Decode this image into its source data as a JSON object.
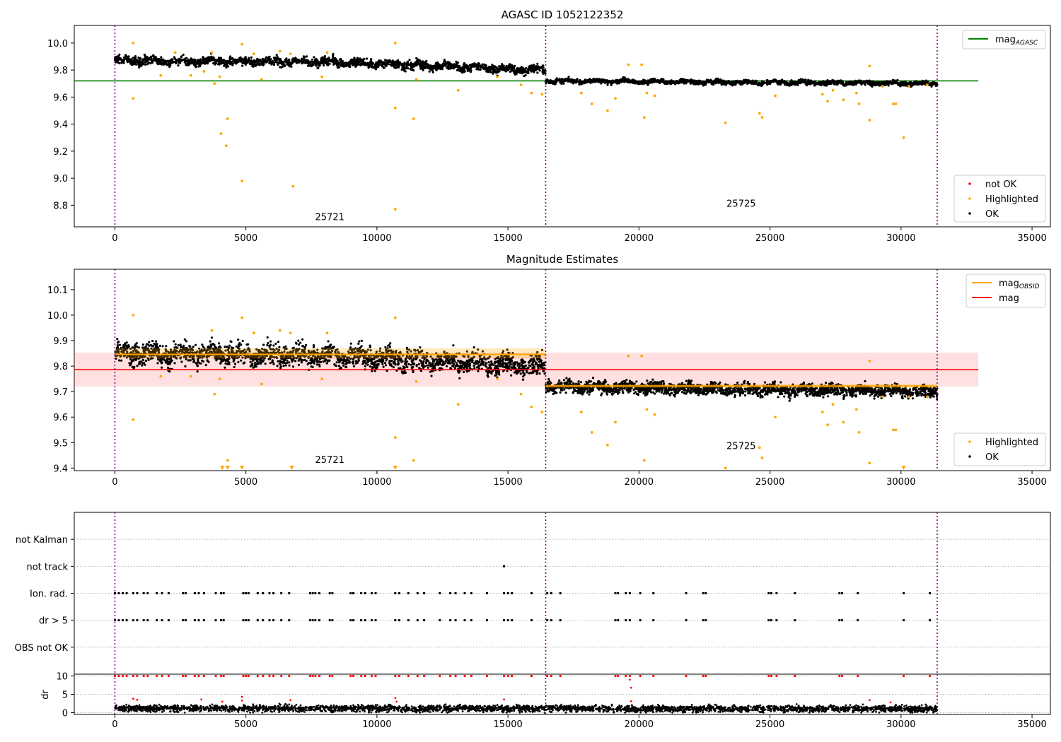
{
  "chart_data": [
    {
      "type": "scatter",
      "title": "AGASC ID 1052122352",
      "xlim": [
        -1550,
        35700
      ],
      "ylim": [
        8.64,
        10.13
      ],
      "xticks": [
        0,
        5000,
        10000,
        15000,
        20000,
        25000,
        30000,
        35000
      ],
      "yticks": [
        8.8,
        9.0,
        9.2,
        9.4,
        9.6,
        9.8,
        10.0
      ],
      "ytick_decimals": 1,
      "grid": false,
      "obsid_boundaries": [
        0,
        16440,
        31380
      ],
      "obsid_labels": [
        {
          "text": "25721",
          "x": 8200,
          "y": 8.69
        },
        {
          "text": "25725",
          "x": 23900,
          "y": 8.79
        }
      ],
      "hlines": [
        {
          "name": "mag_AGASC",
          "y": 9.72,
          "x_range": [
            -1550,
            32950
          ],
          "color": "#008000"
        }
      ],
      "series": [
        {
          "name": "not OK",
          "color": "#ff0000"
        },
        {
          "name": "Highlighted",
          "color": "#ffa500"
        },
        {
          "name": "OK",
          "color": "#000000"
        }
      ],
      "ok_trend": [
        {
          "x": 0,
          "y": 9.87
        },
        {
          "x": 8000,
          "y": 9.86
        },
        {
          "x": 16440,
          "y": 9.8
        },
        {
          "x": 16440,
          "y": 9.72
        },
        {
          "x": 31380,
          "y": 9.7
        }
      ],
      "highlighted_points": [
        [
          700,
          10.0
        ],
        [
          700,
          9.59
        ],
        [
          1750,
          9.76
        ],
        [
          2900,
          9.76
        ],
        [
          3800,
          9.7
        ],
        [
          3700,
          9.93
        ],
        [
          4000,
          9.75
        ],
        [
          4050,
          9.33
        ],
        [
          4300,
          9.44
        ],
        [
          4250,
          9.24
        ],
        [
          4850,
          8.98
        ],
        [
          4850,
          9.99
        ],
        [
          5300,
          9.92
        ],
        [
          5600,
          9.73
        ],
        [
          6300,
          9.94
        ],
        [
          6800,
          8.94
        ],
        [
          6700,
          9.92
        ],
        [
          8100,
          9.93
        ],
        [
          7900,
          9.75
        ],
        [
          10700,
          10.0
        ],
        [
          10700,
          9.52
        ],
        [
          10700,
          8.77
        ],
        [
          11400,
          9.44
        ],
        [
          11500,
          9.73
        ],
        [
          13100,
          9.65
        ],
        [
          14600,
          9.75
        ],
        [
          15500,
          9.69
        ],
        [
          15900,
          9.63
        ],
        [
          16300,
          9.62
        ],
        [
          17800,
          9.63
        ],
        [
          18200,
          9.55
        ],
        [
          18800,
          9.5
        ],
        [
          19100,
          9.59
        ],
        [
          19600,
          9.84
        ],
        [
          20100,
          9.84
        ],
        [
          20200,
          9.45
        ],
        [
          20300,
          9.63
        ],
        [
          20600,
          9.61
        ],
        [
          23300,
          9.41
        ],
        [
          24600,
          9.48
        ],
        [
          24700,
          9.45
        ],
        [
          25200,
          9.61
        ],
        [
          27000,
          9.62
        ],
        [
          27200,
          9.57
        ],
        [
          27400,
          9.65
        ],
        [
          27800,
          9.58
        ],
        [
          28300,
          9.63
        ],
        [
          28400,
          9.55
        ],
        [
          28800,
          9.43
        ],
        [
          28800,
          9.83
        ],
        [
          29300,
          9.68
        ],
        [
          29700,
          9.55
        ],
        [
          29800,
          9.55
        ],
        [
          30100,
          9.3
        ],
        [
          30300,
          9.68
        ],
        [
          31000,
          9.69
        ],
        [
          3400,
          9.79
        ],
        [
          2300,
          9.93
        ]
      ],
      "legends": [
        {
          "position": "top-right",
          "items": [
            {
              "label": "mag",
              "sub": "AGASC",
              "color": "#008000",
              "kind": "line"
            }
          ]
        },
        {
          "position": "bottom-right",
          "items": [
            {
              "label": "not OK",
              "color": "#ff0000",
              "kind": "dot"
            },
            {
              "label": "Highlighted",
              "color": "#ffa500",
              "kind": "dot"
            },
            {
              "label": "OK",
              "color": "#000000",
              "kind": "dot"
            }
          ]
        }
      ]
    },
    {
      "type": "scatter",
      "title": "Magnitude Estimates",
      "xlim": [
        -1550,
        35700
      ],
      "ylim": [
        9.39,
        10.18
      ],
      "xticks": [
        0,
        5000,
        10000,
        15000,
        20000,
        25000,
        30000,
        35000
      ],
      "yticks": [
        9.4,
        9.5,
        9.6,
        9.7,
        9.8,
        9.9,
        10.0,
        10.1
      ],
      "ytick_decimals": 1,
      "grid": false,
      "obsid_boundaries": [
        0,
        16440,
        31380
      ],
      "obsid_labels": [
        {
          "text": "25721",
          "x": 8200,
          "y": 9.42
        },
        {
          "text": "25725",
          "x": 23900,
          "y": 9.475
        }
      ],
      "mag_band": {
        "y": 9.786,
        "low": 9.72,
        "high": 9.853,
        "x_range": [
          -1550,
          32950
        ],
        "color": "#ff0000"
      },
      "obsid_mag": [
        {
          "x_range": [
            0,
            16440
          ],
          "y": 9.846,
          "low": 9.83,
          "high": 9.87,
          "color": "#ffa500"
        },
        {
          "x_range": [
            16440,
            31380
          ],
          "y": 9.722,
          "low": 9.715,
          "high": 9.73,
          "color": "#ffa500"
        }
      ],
      "series": [
        {
          "name": "Highlighted",
          "color": "#ffa500"
        },
        {
          "name": "OK",
          "color": "#000000"
        }
      ],
      "ok_trend": [
        {
          "x": 0,
          "y": 9.85
        },
        {
          "x": 8000,
          "y": 9.84
        },
        {
          "x": 16440,
          "y": 9.8
        },
        {
          "x": 16440,
          "y": 9.72
        },
        {
          "x": 31380,
          "y": 9.7
        }
      ],
      "highlighted_points": [
        [
          700,
          10.0
        ],
        [
          700,
          9.59
        ],
        [
          1750,
          9.76
        ],
        [
          2900,
          9.76
        ],
        [
          3800,
          9.69
        ],
        [
          3700,
          9.94
        ],
        [
          4000,
          9.75
        ],
        [
          4300,
          9.43
        ],
        [
          4850,
          9.99
        ],
        [
          5300,
          9.93
        ],
        [
          5600,
          9.73
        ],
        [
          6300,
          9.94
        ],
        [
          6700,
          9.93
        ],
        [
          8100,
          9.93
        ],
        [
          7900,
          9.75
        ],
        [
          10700,
          9.99
        ],
        [
          10700,
          9.52
        ],
        [
          11400,
          9.43
        ],
        [
          11500,
          9.74
        ],
        [
          13100,
          9.65
        ],
        [
          14600,
          9.75
        ],
        [
          15500,
          9.69
        ],
        [
          15900,
          9.64
        ],
        [
          16300,
          9.62
        ],
        [
          17800,
          9.62
        ],
        [
          18200,
          9.54
        ],
        [
          18800,
          9.49
        ],
        [
          19100,
          9.58
        ],
        [
          19600,
          9.84
        ],
        [
          20100,
          9.84
        ],
        [
          20200,
          9.43
        ],
        [
          20300,
          9.63
        ],
        [
          20600,
          9.61
        ],
        [
          23300,
          9.4
        ],
        [
          24600,
          9.48
        ],
        [
          24700,
          9.44
        ],
        [
          25200,
          9.6
        ],
        [
          27000,
          9.62
        ],
        [
          27200,
          9.57
        ],
        [
          27400,
          9.65
        ],
        [
          27800,
          9.58
        ],
        [
          28300,
          9.63
        ],
        [
          28400,
          9.54
        ],
        [
          28800,
          9.42
        ],
        [
          28800,
          9.82
        ],
        [
          29300,
          9.68
        ],
        [
          29700,
          9.55
        ],
        [
          29800,
          9.55
        ],
        [
          30300,
          9.68
        ],
        [
          31000,
          9.68
        ]
      ],
      "clipped_points_x": [
        4100,
        4300,
        4850,
        6750,
        10700,
        30100
      ],
      "legends": [
        {
          "position": "top-right",
          "items": [
            {
              "label": "mag",
              "sub": "OBSID",
              "color": "#ffa500",
              "kind": "line"
            },
            {
              "label": "mag",
              "color": "#ff0000",
              "kind": "line"
            }
          ]
        },
        {
          "position": "bottom-right",
          "items": [
            {
              "label": "Highlighted",
              "color": "#ffa500",
              "kind": "dot"
            },
            {
              "label": "OK",
              "color": "#000000",
              "kind": "dot"
            }
          ]
        }
      ]
    },
    {
      "type": "scatter",
      "title": "",
      "xlim": [
        -1550,
        35700
      ],
      "categories": [
        "not Kalman",
        "not track",
        "Ion. rad.",
        "dr > 5",
        "OBS not OK"
      ],
      "grid": "horizontal dotted",
      "obsid_boundaries": [
        0,
        16440,
        31380
      ],
      "flag_x": [
        0,
        150,
        300,
        450,
        700,
        850,
        1100,
        1250,
        1600,
        1800,
        2050,
        2600,
        2700,
        3050,
        3200,
        3400,
        3850,
        4050,
        4150,
        4900,
        5000,
        5100,
        5450,
        5650,
        5900,
        6050,
        6350,
        6650,
        7450,
        7550,
        7650,
        7800,
        8200,
        8300,
        9000,
        9100,
        9400,
        9550,
        9800,
        9950,
        10700,
        10850,
        11200,
        11550,
        11800,
        12400,
        12800,
        13000,
        13350,
        13600,
        14200,
        14850,
        15000,
        15150,
        15900,
        16500,
        16650,
        17000,
        19100,
        19200,
        19500,
        19650,
        20050,
        20550,
        21800,
        22450,
        22550,
        24950,
        25050,
        25250,
        25950,
        27650,
        27750,
        28350,
        30100,
        31100
      ],
      "not_track_x": [
        14850
      ]
    },
    {
      "type": "scatter",
      "title": "",
      "xlim": [
        -1550,
        35700
      ],
      "ylim": [
        -0.5,
        10.5
      ],
      "ylabel": "dr",
      "xticks": [
        0,
        5000,
        10000,
        15000,
        20000,
        25000,
        30000,
        35000
      ],
      "yticks": [
        0,
        5,
        10
      ],
      "ytick_decimals": 0,
      "grid": "horizontal dotted",
      "obsid_boundaries": [
        0,
        16440,
        31380
      ],
      "ok_trend": [
        {
          "x": 0,
          "y": 1.2
        },
        {
          "x": 16440,
          "y": 1.1
        },
        {
          "x": 31380,
          "y": 1.0
        }
      ],
      "red_points": [
        [
          700,
          3.8
        ],
        [
          850,
          3.5
        ],
        [
          3300,
          3.6
        ],
        [
          4100,
          3.0
        ],
        [
          4850,
          4.3
        ],
        [
          4850,
          3.3
        ],
        [
          6700,
          3.4
        ],
        [
          10700,
          4.0
        ],
        [
          10750,
          3.0
        ],
        [
          14850,
          3.6
        ],
        [
          19650,
          9.0
        ],
        [
          19700,
          6.8
        ],
        [
          19700,
          3.1
        ],
        [
          28800,
          3.4
        ],
        [
          29600,
          2.8
        ]
      ]
    }
  ]
}
